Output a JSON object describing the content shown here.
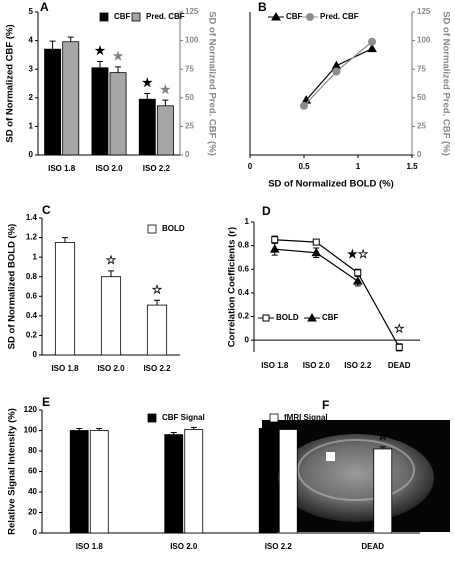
{
  "chart_data": [
    {
      "type": "bar",
      "panel_label": "A",
      "y_label": "SD of Normalized CBF (%)",
      "y2_label": "SD of Normalized Pred. CBF (%)",
      "categories": [
        "ISO 1.8",
        "ISO 2.0",
        "ISO 2.2"
      ],
      "ylim": [
        0,
        5
      ],
      "yticks": [
        0,
        1,
        2,
        3,
        4,
        5
      ],
      "y2lim": [
        0,
        125
      ],
      "y2ticks": [
        0,
        25,
        50,
        75,
        100,
        125
      ],
      "series": [
        {
          "name": "CBF",
          "color": "#000000",
          "values": [
            3.7,
            3.05,
            1.95
          ],
          "errors": [
            0.28,
            0.22,
            0.2
          ]
        },
        {
          "name": "Pred. CBF",
          "color": "#a6a6a6",
          "axis": "y2",
          "values": [
            99,
            72,
            43
          ],
          "errors": [
            4,
            5,
            5
          ]
        }
      ],
      "annotations": [
        {
          "text": "★",
          "category": 1,
          "series": 0,
          "color": "#000000"
        },
        {
          "text": "★",
          "category": 1,
          "series": 1,
          "color": "#808080"
        },
        {
          "text": "★",
          "category": 2,
          "series": 0,
          "color": "#000000"
        },
        {
          "text": "★",
          "category": 2,
          "series": 1,
          "color": "#808080"
        }
      ]
    },
    {
      "type": "line",
      "panel_label": "B",
      "x_label": "SD of Normalized BOLD (%)",
      "y2_label": "SD of Normalized Pred. CBF (%)",
      "xlim": [
        0,
        1.5
      ],
      "xticks": [
        0,
        0.5,
        1,
        1.5
      ],
      "y2lim": [
        0,
        125
      ],
      "y2ticks": [
        0,
        25,
        50,
        75,
        100,
        125
      ],
      "series": [
        {
          "name": "CBF",
          "color": "#000000",
          "marker": "triangle",
          "axis": "y2",
          "x": [
            0.52,
            0.8,
            1.13
          ],
          "values": [
            48,
            78,
            93
          ]
        },
        {
          "name": "Pred. CBF",
          "color": "#8c8c8c",
          "marker": "circle",
          "axis": "y2",
          "x": [
            0.5,
            0.8,
            1.13
          ],
          "values": [
            43,
            73,
            99
          ]
        }
      ]
    },
    {
      "type": "bar",
      "panel_label": "C",
      "y_label": "SD of Normalized BOLD (%)",
      "categories": [
        "ISO 1.8",
        "ISO 2.0",
        "ISO 2.2"
      ],
      "ylim": [
        0,
        1.4
      ],
      "yticks": [
        0,
        0.2,
        0.4,
        0.6,
        0.8,
        1,
        1.2,
        1.4
      ],
      "series": [
        {
          "name": "BOLD",
          "color": "#ffffff",
          "values": [
            1.15,
            0.8,
            0.51
          ],
          "errors": [
            0.05,
            0.06,
            0.05
          ]
        }
      ],
      "annotations": [
        {
          "text": "☆",
          "category": 1,
          "series": 0,
          "color": "#000000"
        },
        {
          "text": "☆",
          "category": 2,
          "series": 0,
          "color": "#000000"
        }
      ]
    },
    {
      "type": "line",
      "panel_label": "D",
      "y_label": "Correlation Coefficients (r)",
      "categories": [
        "ISO 1.8",
        "ISO 2.0",
        "ISO 2.2",
        "DEAD"
      ],
      "ylim": [
        -0.1,
        1
      ],
      "yticks": [
        0,
        0.2,
        0.4,
        0.6,
        0.8,
        1
      ],
      "series": [
        {
          "name": "BOLD",
          "color": "#000000",
          "marker": "square",
          "values": [
            0.85,
            0.83,
            0.57,
            -0.06
          ],
          "errors": [
            0.03,
            0.02,
            0.03,
            0.03
          ]
        },
        {
          "name": "CBF",
          "color": "#000000",
          "marker": "triangle",
          "values": [
            0.77,
            0.74,
            0.5,
            null
          ],
          "errors": [
            0.05,
            0.04,
            0.04,
            null
          ]
        }
      ],
      "annotations": [
        {
          "text": "★☆",
          "category": 2,
          "color": "#000000"
        },
        {
          "text": "☆",
          "category": 3,
          "color": "#000000"
        }
      ]
    },
    {
      "type": "bar",
      "panel_label": "E",
      "y_label": "Relative Signal Intensity (%)",
      "categories": [
        "ISO 1.8",
        "ISO 2.0",
        "ISO 2.2",
        "DEAD"
      ],
      "ylim": [
        0,
        120
      ],
      "yticks": [
        0,
        20,
        40,
        60,
        80,
        100,
        120
      ],
      "series": [
        {
          "name": "CBF Signal",
          "color": "#000000",
          "values": [
            100,
            96,
            102,
            null
          ],
          "errors": [
            2,
            2,
            2,
            null
          ]
        },
        {
          "name": "fMRI Signal",
          "color": "#ffffff",
          "values": [
            100,
            101,
            101,
            82
          ],
          "errors": [
            2,
            2,
            2,
            2
          ]
        }
      ],
      "annotations": [
        {
          "text": "☆",
          "category": 3,
          "series": 1,
          "color": "#000000"
        }
      ]
    }
  ],
  "image": {
    "panel_label": "F"
  }
}
